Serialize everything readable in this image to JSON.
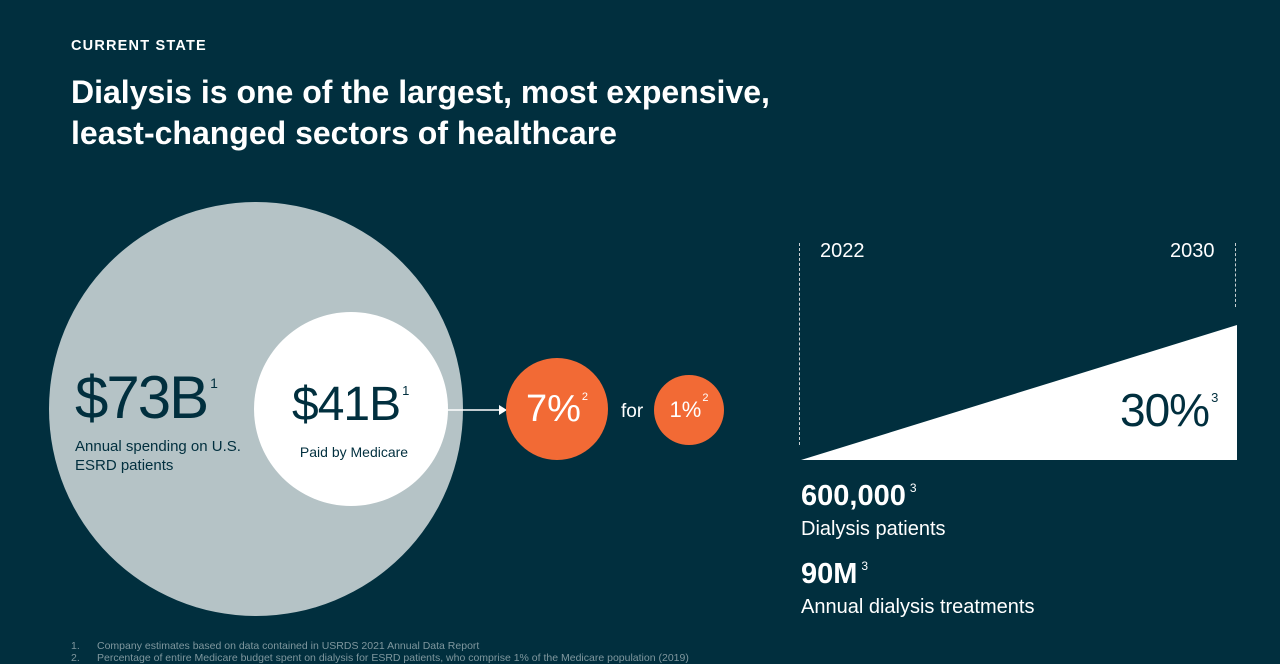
{
  "header": {
    "eyebrow": "CURRENT STATE",
    "title": "Dialysis is one of the largest, most expensive, least-changed sectors of healthcare"
  },
  "spending": {
    "total": {
      "value": "$73B",
      "sup": "1",
      "label": "Annual spending on U.S. ESRD patients"
    },
    "medicare": {
      "value": "$41B",
      "sup": "1",
      "label": "Paid by Medicare"
    },
    "share_budget": {
      "value": "7%",
      "sup": "2"
    },
    "for_label": "for",
    "share_population": {
      "value": "1%",
      "sup": "2"
    }
  },
  "growth": {
    "start_year": "2022",
    "end_year": "2030",
    "percent": "30%",
    "percent_sup": "3",
    "growth_fraction": 0.3
  },
  "stats": [
    {
      "value": "600,000",
      "sup": "3",
      "label": "Dialysis patients"
    },
    {
      "value": "90M",
      "sup": "3",
      "label": "Annual dialysis treatments"
    }
  ],
  "footnotes": [
    {
      "num": "1.",
      "text": "Company estimates based on data contained in USRDS 2021 Annual Data Report"
    },
    {
      "num": "2.",
      "text": "Percentage of entire Medicare budget spent on dialysis for  ESRD patients, who comprise 1% of the Medicare population (2019)"
    }
  ],
  "colors": {
    "background": "#012f3e",
    "accent_orange": "#f26a35",
    "circle_gray": "#b5c3c6",
    "white": "#ffffff"
  }
}
